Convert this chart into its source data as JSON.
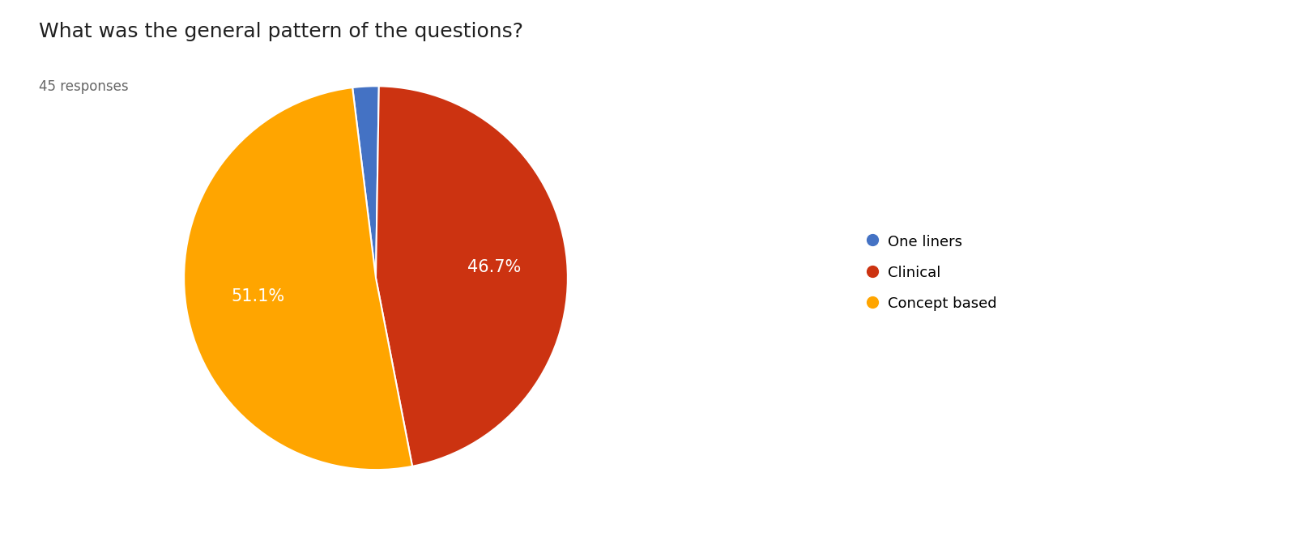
{
  "title": "What was the general pattern of the questions?",
  "subtitle": "45 responses",
  "labels": [
    "One liners",
    "Clinical",
    "Concept based"
  ],
  "values": [
    2.2,
    46.7,
    51.1
  ],
  "colors": [
    "#4472C4",
    "#CC3311",
    "#FFA500"
  ],
  "background_color": "#ffffff",
  "title_fontsize": 18,
  "subtitle_fontsize": 12,
  "legend_fontsize": 13,
  "pct_fontsize": 15,
  "startangle": 97
}
